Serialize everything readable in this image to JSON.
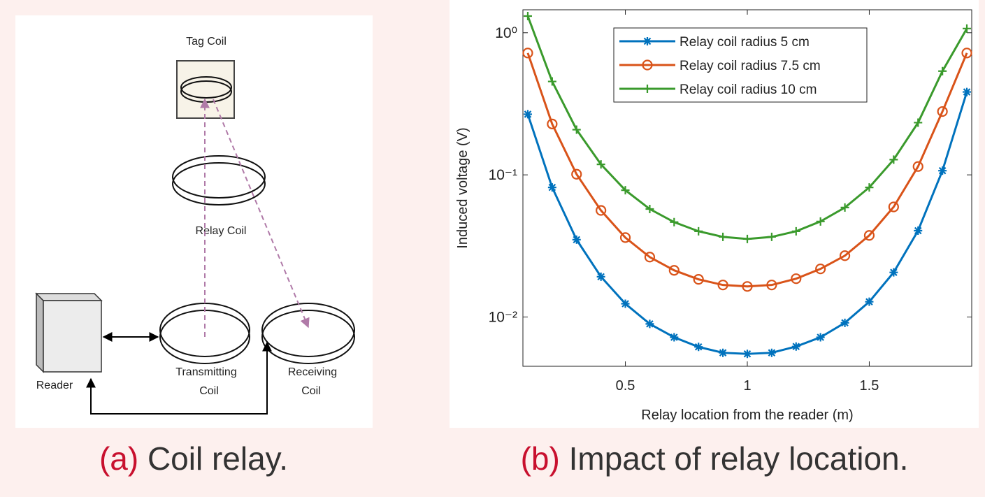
{
  "diagram": {
    "tag_coil": "Tag Coil",
    "relay_coil": "Relay Coil",
    "reader": "Reader",
    "transmitting_coil": [
      "Transmitting",
      "Coil"
    ],
    "receiving_coil": [
      "Receiving",
      "Coil"
    ]
  },
  "captions": [
    {
      "label": "(a)",
      "text": "Coil relay."
    },
    {
      "label": "(b)",
      "text": "Impact of relay location."
    }
  ],
  "chart_data": {
    "type": "line",
    "xlabel": "Relay location from the reader (m)",
    "ylabel": "Induced voltage (V)",
    "x": [
      0.1,
      0.2,
      0.3,
      0.4,
      0.5,
      0.6,
      0.7,
      0.8,
      0.9,
      1.0,
      1.1,
      1.2,
      1.3,
      1.4,
      1.5,
      1.6,
      1.7,
      1.8,
      1.9
    ],
    "series": [
      {
        "name": "Relay coil radius 5 cm",
        "color": "#0072bd",
        "marker": "asterisk",
        "values": [
          0.267,
          0.0816,
          0.035,
          0.0192,
          0.0124,
          0.00894,
          0.0072,
          0.00616,
          0.0056,
          0.0055,
          0.0056,
          0.0062,
          0.0072,
          0.0091,
          0.0128,
          0.0206,
          0.0405,
          0.107,
          0.383
        ]
      },
      {
        "name": "Relay coil radius 7.5 cm",
        "color": "#d95319",
        "marker": "circle",
        "values": [
          0.72,
          0.228,
          0.101,
          0.0562,
          0.0362,
          0.0264,
          0.0213,
          0.0184,
          0.0168,
          0.0164,
          0.0168,
          0.0186,
          0.0218,
          0.027,
          0.0375,
          0.0595,
          0.1145,
          0.279,
          0.72
        ]
      },
      {
        "name": "Relay coil radius 10 cm",
        "color": "#3a9a2c",
        "marker": "plus",
        "values": [
          1.31,
          0.454,
          0.208,
          0.1185,
          0.078,
          0.0575,
          0.0465,
          0.0401,
          0.0366,
          0.0354,
          0.0366,
          0.0401,
          0.047,
          0.0589,
          0.0816,
          0.128,
          0.233,
          0.537,
          1.07
        ]
      }
    ],
    "xlim": [
      0.08,
      1.92
    ],
    "xticks": [
      0.5,
      1,
      1.5
    ],
    "ylim": [
      0.0045,
      1.45
    ],
    "ylog": true,
    "yticks": [
      {
        "value": 0.01,
        "label": "10⁻²"
      },
      {
        "value": 0.1,
        "label": "10⁻¹"
      },
      {
        "value": 1,
        "label": "10⁰"
      }
    ],
    "legend": "top",
    "grid": false
  }
}
